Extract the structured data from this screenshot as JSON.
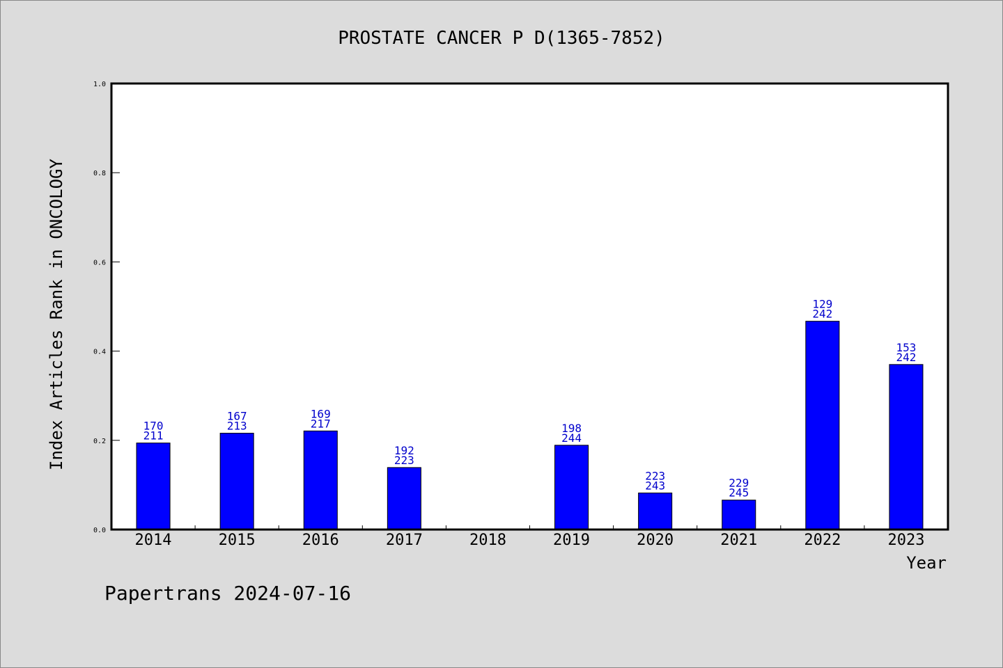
{
  "chart_data": {
    "type": "bar",
    "title": "PROSTATE CANCER P D(1365-7852)",
    "xlabel": "Year",
    "ylabel": "Index Articles Rank in ONCOLOGY",
    "ylim": [
      0,
      1.0
    ],
    "yticks": [
      "0.0",
      "0.2",
      "0.4",
      "0.6",
      "0.8",
      "1.0"
    ],
    "grid": false,
    "categories": [
      "2014",
      "2015",
      "2016",
      "2017",
      "2018",
      "2019",
      "2020",
      "2021",
      "2022",
      "2023"
    ],
    "values": [
      0.194,
      0.216,
      0.221,
      0.139,
      0,
      0.189,
      0.082,
      0.066,
      0.467,
      0.37
    ],
    "rank_labels": [
      [
        "170",
        "211"
      ],
      [
        "167",
        "213"
      ],
      [
        "169",
        "217"
      ],
      [
        "192",
        "223"
      ],
      null,
      [
        "198",
        "244"
      ],
      [
        "223",
        "243"
      ],
      [
        "229",
        "245"
      ],
      [
        "129",
        "242"
      ],
      [
        "153",
        "242"
      ]
    ],
    "bar_color": "#0000ff",
    "label_color": "#0000cc"
  },
  "footer": "Papertrans 2024-07-16",
  "colors": {
    "background": "#dcdcdc",
    "plot_background": "#ffffff"
  }
}
